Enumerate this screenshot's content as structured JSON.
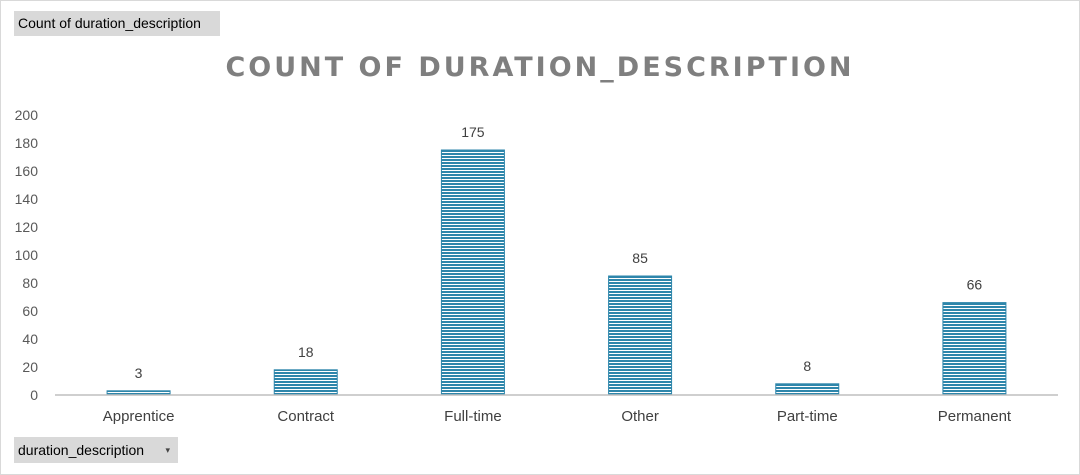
{
  "field_buttons": {
    "values_field": "Count of duration_description",
    "axis_field": "duration_description",
    "axis_field_arrow": "▾"
  },
  "colors": {
    "bar_fill": "#2e86ab",
    "bar_stripe": "#ffffff",
    "axis_line": "#bfbfbf",
    "title": "#7f7f7f"
  },
  "chart_data": {
    "type": "bar",
    "title": "COUNT OF DURATION_DESCRIPTION",
    "xlabel": "",
    "ylabel": "",
    "categories": [
      "Apprentice",
      "Contract",
      "Full-time",
      "Other",
      "Part-time",
      "Permanent"
    ],
    "values": [
      3,
      18,
      175,
      85,
      8,
      66
    ],
    "ylim": [
      0,
      200
    ],
    "yticks": [
      0,
      20,
      40,
      60,
      80,
      100,
      120,
      140,
      160,
      180,
      200
    ],
    "grid": false,
    "legend": "none",
    "data_labels": true,
    "bar_pattern": "horizontal-stripes"
  }
}
